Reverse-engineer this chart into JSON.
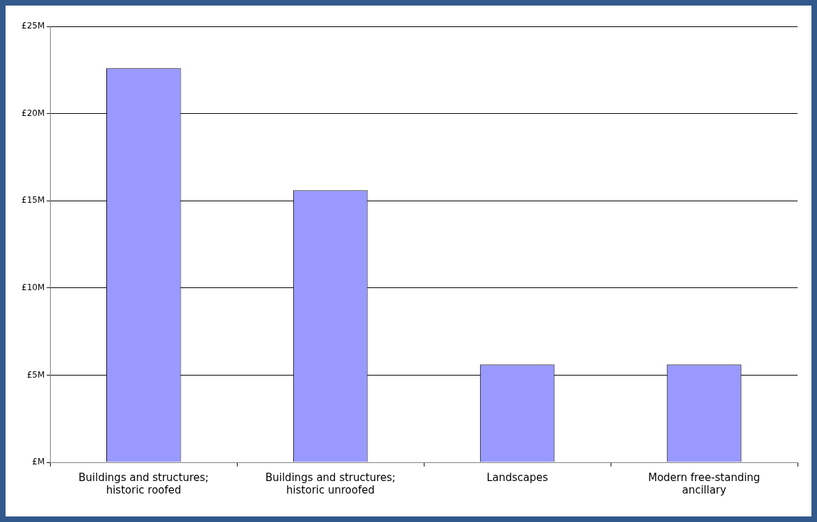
{
  "chart_data": {
    "type": "bar",
    "categories": [
      "Buildings and structures; historic roofed",
      "Buildings and structures; historic unroofed",
      "Landscapes",
      "Modern free-standing ancillary"
    ],
    "values": [
      22.6,
      15.6,
      5.6,
      5.6
    ],
    "color": "#9999ff",
    "ylim": [
      0,
      25
    ],
    "yticks": [
      {
        "value": 0,
        "label": "£M"
      },
      {
        "value": 5,
        "label": "£5M"
      },
      {
        "value": 10,
        "label": "£10M"
      },
      {
        "value": 15,
        "label": "£15M"
      },
      {
        "value": 20,
        "label": "£20M"
      },
      {
        "value": 25,
        "label": "£25M"
      }
    ],
    "grid": "y"
  }
}
